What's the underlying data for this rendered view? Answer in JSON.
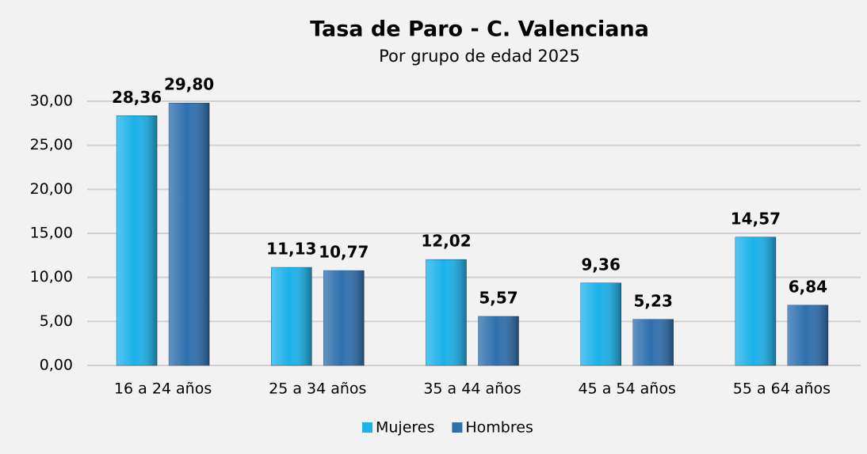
{
  "chart_data": {
    "type": "bar",
    "title": "Tasa de Paro - C. Valenciana",
    "subtitle": "Por grupo de edad 2025",
    "categories": [
      "16 a 24 años",
      "25 a 34 años",
      "35 a 44 años",
      "45 a 54 años",
      "55 a 64 años"
    ],
    "series": [
      {
        "name": "Mujeres",
        "color": "#1ab2ea",
        "values": [
          28.36,
          11.13,
          12.02,
          9.36,
          14.57
        ],
        "value_labels": [
          "28,36",
          "11,13",
          "12,02",
          "9,36",
          "14,57"
        ]
      },
      {
        "name": "Hombres",
        "color": "#2f6fae",
        "values": [
          29.8,
          10.77,
          5.57,
          5.23,
          6.84
        ],
        "value_labels": [
          "29,80",
          "10,77",
          "5,57",
          "5,23",
          "6,84"
        ]
      }
    ],
    "ylim": [
      0,
      30
    ],
    "yticks": [
      {
        "value": 0,
        "label": "0,00"
      },
      {
        "value": 5,
        "label": "5,00"
      },
      {
        "value": 10,
        "label": "10,00"
      },
      {
        "value": 15,
        "label": "15,00"
      },
      {
        "value": 20,
        "label": "20,00"
      },
      {
        "value": 25,
        "label": "25,00"
      },
      {
        "value": 30,
        "label": "30,00"
      }
    ],
    "grid": true,
    "legend": "bottom"
  }
}
